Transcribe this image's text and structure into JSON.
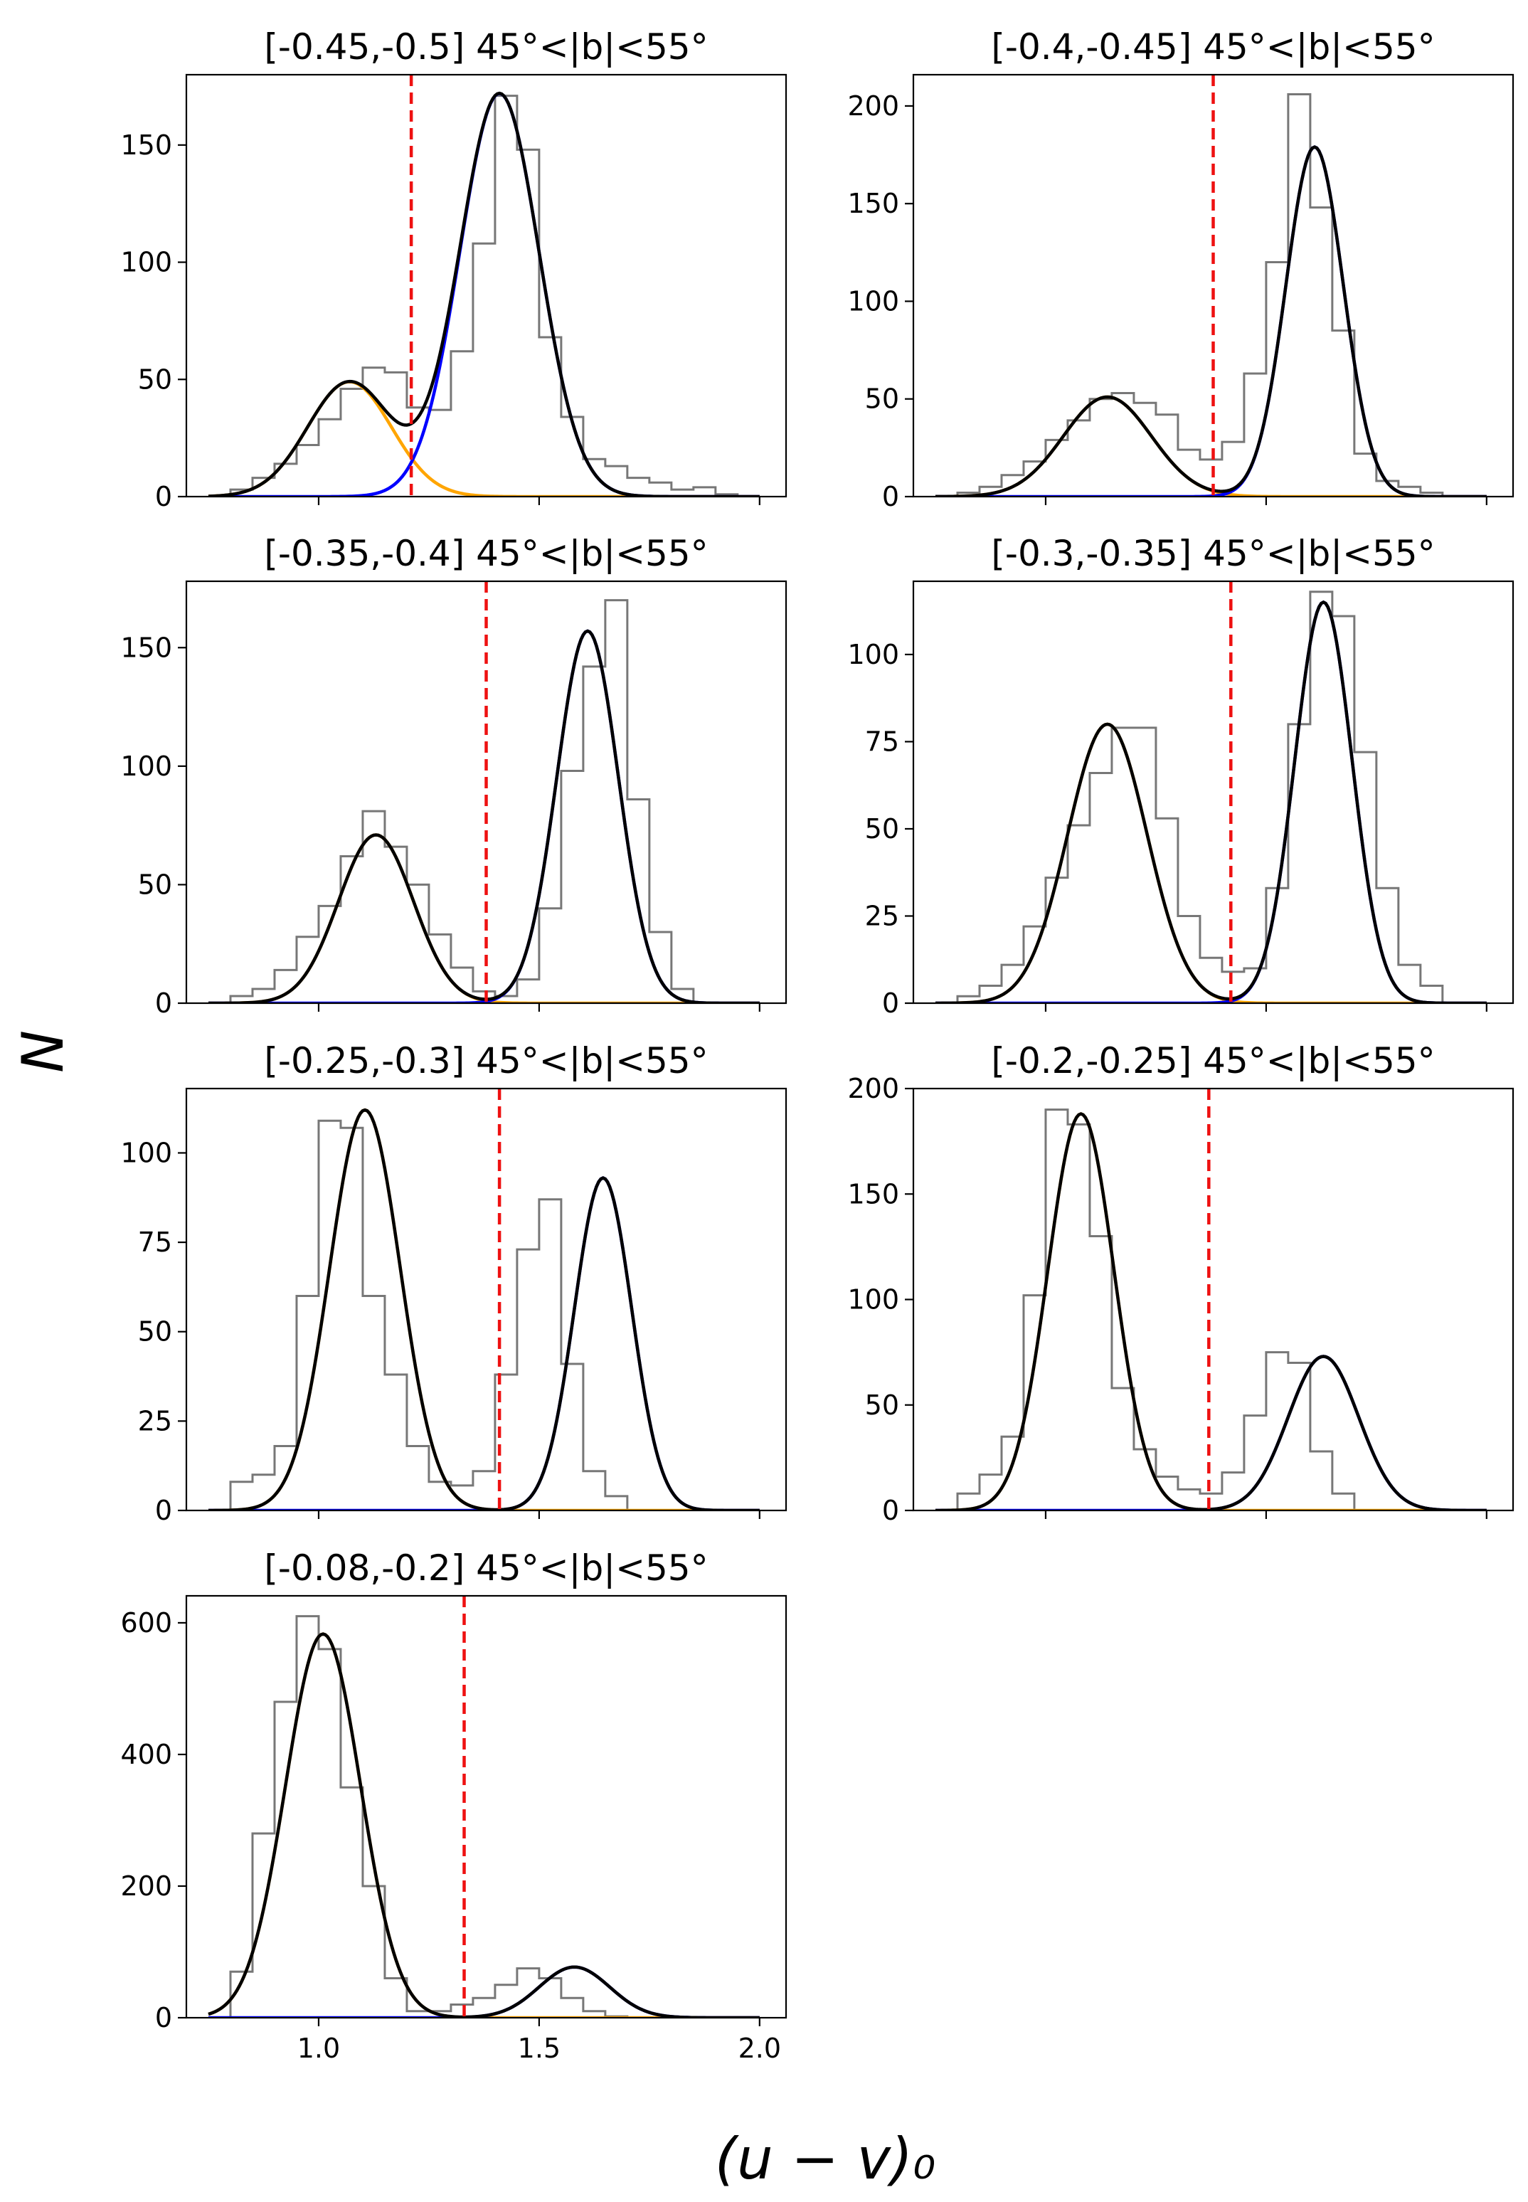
{
  "figure": {
    "ylabel": "N",
    "xlabel": "(u − v)₀",
    "colors": {
      "hist": "#777777",
      "red_sequence": "#0000ff",
      "blue_cloud": "#ffa500",
      "total": "#000000",
      "cut": "#ee1111"
    }
  },
  "chart_data": [
    {
      "type": "bar",
      "title": "[-0.45,-0.5] 45°<|b|<55°",
      "xlim": [
        0.7,
        2.06
      ],
      "ylim": [
        0,
        180
      ],
      "xticks": [
        1.0,
        1.5,
        2.0
      ],
      "xticklabels": [
        "",
        "",
        ""
      ],
      "yticks": [
        0,
        50,
        100,
        150
      ],
      "bins_start": 0.8,
      "bin_width": 0.05,
      "counts": [
        3,
        8,
        14,
        22,
        33,
        46,
        55,
        53,
        38,
        37,
        62,
        108,
        171,
        148,
        68,
        34,
        16,
        13,
        8,
        6,
        3,
        4,
        1,
        0
      ],
      "gaussians": [
        {
          "role": "blue_cloud",
          "mu": 1.07,
          "sigma": 0.095,
          "amp": 49
        },
        {
          "role": "red_sequence",
          "mu": 1.41,
          "sigma": 0.09,
          "amp": 172
        }
      ],
      "cut": 1.21
    },
    {
      "type": "bar",
      "title": "[-0.4,-0.45] 45°<|b|<55°",
      "xlim": [
        0.7,
        2.06
      ],
      "ylim": [
        0,
        216
      ],
      "xticks": [
        1.0,
        1.5,
        2.0
      ],
      "xticklabels": [
        "",
        "",
        ""
      ],
      "yticks": [
        0,
        50,
        100,
        150,
        200
      ],
      "bins_start": 0.8,
      "bin_width": 0.05,
      "counts": [
        2,
        5,
        11,
        18,
        29,
        39,
        50,
        53,
        48,
        42,
        24,
        19,
        28,
        63,
        120,
        206,
        148,
        85,
        22,
        8,
        5,
        2,
        0,
        0
      ],
      "gaussians": [
        {
          "role": "blue_cloud",
          "mu": 1.14,
          "sigma": 0.1,
          "amp": 51
        },
        {
          "role": "red_sequence",
          "mu": 1.61,
          "sigma": 0.065,
          "amp": 179
        }
      ],
      "cut": 1.38
    },
    {
      "type": "bar",
      "title": "[-0.35,-0.4] 45°<|b|<55°",
      "xlim": [
        0.7,
        2.06
      ],
      "ylim": [
        0,
        178
      ],
      "xticks": [
        1.0,
        1.5,
        2.0
      ],
      "xticklabels": [
        "",
        "",
        ""
      ],
      "yticks": [
        0,
        50,
        100,
        150
      ],
      "bins_start": 0.8,
      "bin_width": 0.05,
      "counts": [
        3,
        6,
        14,
        28,
        41,
        62,
        81,
        66,
        50,
        29,
        15,
        5,
        3,
        10,
        40,
        98,
        142,
        170,
        86,
        30,
        6,
        0,
        0,
        0
      ],
      "gaussians": [
        {
          "role": "blue_cloud",
          "mu": 1.13,
          "sigma": 0.085,
          "amp": 71
        },
        {
          "role": "red_sequence",
          "mu": 1.61,
          "sigma": 0.07,
          "amp": 157
        }
      ],
      "cut": 1.38
    },
    {
      "type": "bar",
      "title": "[-0.3,-0.35] 45°<|b|<55°",
      "xlim": [
        0.7,
        2.06
      ],
      "ylim": [
        0,
        121
      ],
      "xticks": [
        1.0,
        1.5,
        2.0
      ],
      "xticklabels": [
        "",
        "",
        ""
      ],
      "yticks": [
        0,
        25,
        50,
        75,
        100
      ],
      "bins_start": 0.8,
      "bin_width": 0.05,
      "counts": [
        2,
        5,
        11,
        22,
        36,
        51,
        66,
        79,
        79,
        53,
        25,
        13,
        9,
        10,
        33,
        80,
        118,
        111,
        72,
        33,
        11,
        5,
        0,
        0
      ],
      "gaussians": [
        {
          "role": "blue_cloud",
          "mu": 1.14,
          "sigma": 0.09,
          "amp": 80
        },
        {
          "role": "red_sequence",
          "mu": 1.63,
          "sigma": 0.065,
          "amp": 115
        }
      ],
      "cut": 1.42
    },
    {
      "type": "bar",
      "title": "[-0.25,-0.3] 45°<|b|<55°",
      "xlim": [
        0.7,
        2.06
      ],
      "ylim": [
        0,
        118
      ],
      "xticks": [
        1.0,
        1.5,
        2.0
      ],
      "xticklabels": [
        "",
        "",
        ""
      ],
      "yticks": [
        0,
        25,
        50,
        75,
        100
      ],
      "bins_start": 0.8,
      "bin_width": 0.05,
      "counts": [
        8,
        10,
        18,
        60,
        109,
        107,
        60,
        38,
        18,
        8,
        7,
        11,
        38,
        73,
        87,
        41,
        11,
        4,
        0,
        0,
        0,
        0,
        0,
        0
      ],
      "gaussians": [
        {
          "role": "blue_cloud",
          "mu": 1.105,
          "sigma": 0.08,
          "amp": 112
        },
        {
          "role": "red_sequence",
          "mu": 1.645,
          "sigma": 0.065,
          "amp": 93
        }
      ],
      "cut": 1.41
    },
    {
      "type": "bar",
      "title": "[-0.2,-0.25] 45°<|b|<55°",
      "xlim": [
        0.7,
        2.06
      ],
      "ylim": [
        0,
        200
      ],
      "xticks": [
        1.0,
        1.5,
        2.0
      ],
      "xticklabels": [
        "",
        "",
        ""
      ],
      "yticks": [
        0,
        50,
        100,
        150,
        200
      ],
      "bins_start": 0.8,
      "bin_width": 0.05,
      "counts": [
        8,
        17,
        35,
        102,
        190,
        183,
        130,
        58,
        29,
        16,
        10,
        8,
        18,
        45,
        75,
        70,
        28,
        8,
        0,
        0,
        0,
        0,
        0,
        0
      ],
      "gaussians": [
        {
          "role": "blue_cloud",
          "mu": 1.08,
          "sigma": 0.075,
          "amp": 188
        },
        {
          "role": "red_sequence",
          "mu": 1.63,
          "sigma": 0.08,
          "amp": 73
        }
      ],
      "cut": 1.37
    },
    {
      "type": "bar",
      "title": "[-0.08,-0.2] 45°<|b|<55°",
      "xlim": [
        0.7,
        2.06
      ],
      "ylim": [
        0,
        641
      ],
      "xticks": [
        1.0,
        1.5,
        2.0
      ],
      "xticklabels": [
        "1.0",
        "1.5",
        "2.0"
      ],
      "yticks": [
        0,
        200,
        400,
        600
      ],
      "bins_start": 0.8,
      "bin_width": 0.05,
      "counts": [
        70,
        280,
        480,
        610,
        560,
        350,
        200,
        60,
        10,
        10,
        20,
        30,
        50,
        75,
        60,
        30,
        10,
        2,
        0,
        0,
        0,
        0,
        0,
        0
      ],
      "gaussians": [
        {
          "role": "blue_cloud",
          "mu": 1.01,
          "sigma": 0.085,
          "amp": 583
        },
        {
          "role": "red_sequence",
          "mu": 1.58,
          "sigma": 0.08,
          "amp": 77
        }
      ],
      "cut": 1.33
    }
  ]
}
